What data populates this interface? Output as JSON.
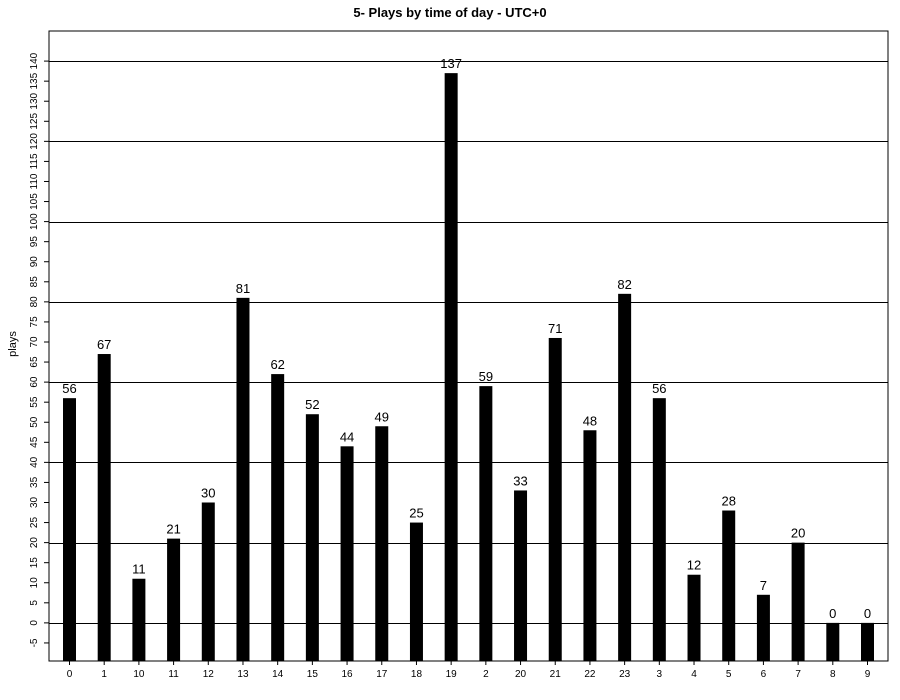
{
  "chart_data": {
    "type": "bar",
    "title": "5- Plays by time of day - UTC+0",
    "xlabel": "",
    "ylabel": "plays",
    "ylim": [
      -9.5,
      147.5
    ],
    "yticks": [
      -5,
      0,
      5,
      10,
      15,
      20,
      25,
      30,
      35,
      40,
      45,
      50,
      55,
      60,
      65,
      70,
      75,
      80,
      85,
      90,
      95,
      100,
      105,
      110,
      115,
      120,
      125,
      130,
      135,
      140
    ],
    "gridlines": [
      0,
      20,
      40,
      60,
      80,
      100,
      120,
      140
    ],
    "grid": true,
    "legend": "none",
    "categories": [
      "0",
      "1",
      "10",
      "11",
      "12",
      "13",
      "14",
      "15",
      "16",
      "17",
      "18",
      "19",
      "2",
      "20",
      "21",
      "22",
      "23",
      "3",
      "4",
      "5",
      "6",
      "7",
      "8",
      "9"
    ],
    "values": [
      56,
      67,
      11,
      21,
      30,
      81,
      62,
      52,
      44,
      49,
      25,
      137,
      59,
      33,
      71,
      48,
      82,
      56,
      12,
      28,
      7,
      20,
      0,
      0
    ],
    "bar_color": "#000000",
    "grid_color": "#000000"
  }
}
